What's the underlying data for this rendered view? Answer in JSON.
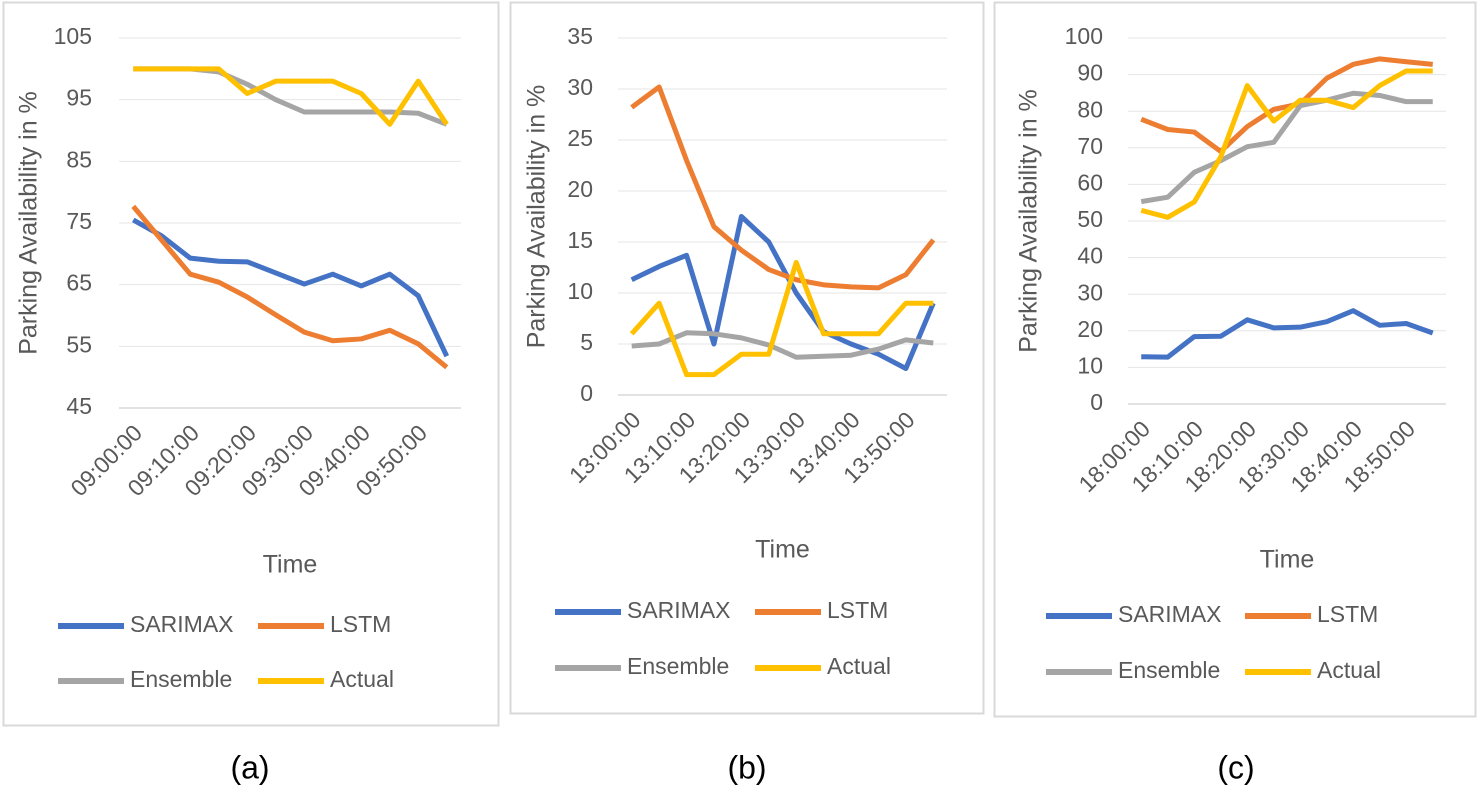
{
  "chart_data": [
    {
      "type": "line",
      "caption": "(a)",
      "y_label": "Parking Availability in %",
      "x_label": "Time",
      "categories": [
        "09:00:00",
        null,
        "09:10:00",
        null,
        "09:20:00",
        null,
        "09:30:00",
        null,
        "09:40:00",
        null,
        "09:50:00",
        null
      ],
      "ylim": [
        45,
        105
      ],
      "yticks": [
        45,
        55,
        65,
        75,
        85,
        95,
        105
      ],
      "grid": true,
      "series": [
        {
          "name": "SARIMAX",
          "color": "#4472c4",
          "values": [
            75.5,
            72.9,
            69.3,
            68.8,
            68.7,
            66.9,
            65.1,
            66.7,
            64.8,
            66.7,
            63.2,
            53.4
          ]
        },
        {
          "name": "LSTM",
          "color": "#ed7d31",
          "values": [
            77.7,
            72.2,
            66.7,
            65.4,
            63,
            60.1,
            57.3,
            55.9,
            56.2,
            57.6,
            55.4,
            51.6
          ]
        },
        {
          "name": "Ensemble",
          "color": "#a5a5a5",
          "values": [
            100,
            100,
            100,
            99.5,
            97.5,
            95,
            93,
            93,
            93,
            93,
            92.8,
            91
          ]
        },
        {
          "name": "Actual",
          "color": "#ffc000",
          "values": [
            100,
            100,
            100,
            100,
            96,
            98,
            98,
            98,
            96,
            91,
            98,
            91
          ]
        }
      ]
    },
    {
      "type": "line",
      "caption": "(b)",
      "y_label": "Parking Availability in %",
      "x_label": "Time",
      "categories": [
        "13:00:00",
        null,
        "13:10:00",
        null,
        "13:20:00",
        null,
        "13:30:00",
        null,
        "13:40:00",
        null,
        "13:50:00",
        null
      ],
      "ylim": [
        0,
        35
      ],
      "yticks": [
        0,
        5,
        10,
        15,
        20,
        25,
        30,
        35
      ],
      "grid": true,
      "series": [
        {
          "name": "SARIMAX",
          "color": "#4472c4",
          "values": [
            11.3,
            12.6,
            13.7,
            5,
            17.5,
            15,
            10,
            6.2,
            5,
            4,
            2.6,
            9
          ]
        },
        {
          "name": "LSTM",
          "color": "#ed7d31",
          "values": [
            28.2,
            30.2,
            23,
            16.5,
            14.2,
            12.3,
            11.3,
            10.8,
            10.6,
            10.5,
            11.8,
            15.2
          ]
        },
        {
          "name": "Ensemble",
          "color": "#a5a5a5",
          "values": [
            4.8,
            5,
            6.1,
            6,
            5.6,
            4.9,
            3.7,
            3.8,
            3.9,
            4.5,
            5.4,
            5.1
          ]
        },
        {
          "name": "Actual",
          "color": "#ffc000",
          "values": [
            6,
            9,
            2,
            2,
            4,
            4,
            13,
            6,
            6,
            6,
            9,
            9
          ]
        }
      ]
    },
    {
      "type": "line",
      "caption": "(c)",
      "y_label": "Parking Availability in %",
      "x_label": "Time",
      "categories": [
        "18:00:00",
        null,
        "18:10:00",
        null,
        "18:20:00",
        null,
        "18:30:00",
        null,
        "18:40:00",
        null,
        "18:50:00",
        null
      ],
      "ylim": [
        0,
        100
      ],
      "yticks": [
        0,
        10,
        20,
        30,
        40,
        50,
        60,
        70,
        80,
        90,
        100
      ],
      "grid": true,
      "series": [
        {
          "name": "SARIMAX",
          "color": "#4472c4",
          "values": [
            12.9,
            12.8,
            18.4,
            18.5,
            23,
            20.8,
            21,
            22.5,
            25.5,
            21.5,
            22,
            19.4
          ]
        },
        {
          "name": "LSTM",
          "color": "#ed7d31",
          "values": [
            77.8,
            75,
            74.3,
            69,
            75.8,
            80.5,
            82,
            89,
            92.8,
            94.3,
            93.5,
            92.8
          ]
        },
        {
          "name": "Ensemble",
          "color": "#a5a5a5",
          "values": [
            55.3,
            56.5,
            63.3,
            66.5,
            70.3,
            71.5,
            81.5,
            83,
            84.9,
            84.3,
            82.6,
            82.6
          ]
        },
        {
          "name": "Actual",
          "color": "#ffc000",
          "values": [
            52.9,
            51,
            55.2,
            67.5,
            87,
            77.3,
            83,
            83,
            81,
            87,
            91,
            91
          ]
        }
      ]
    }
  ]
}
